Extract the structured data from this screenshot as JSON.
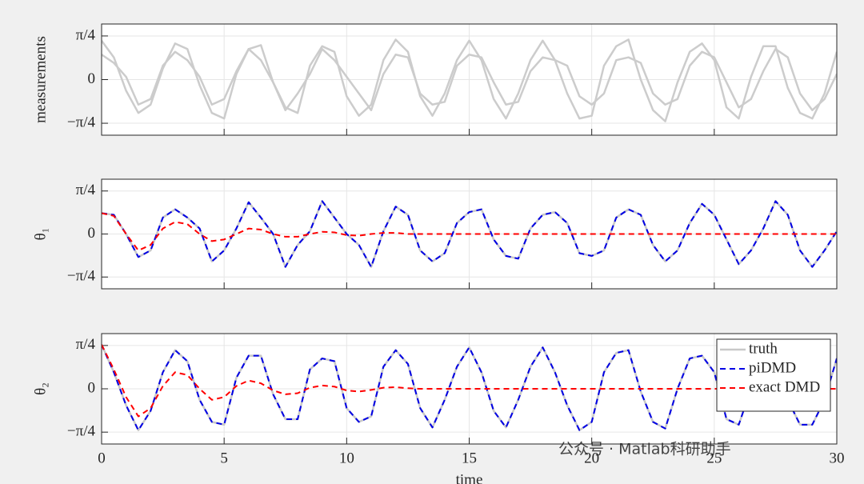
{
  "chart_data": [
    {
      "type": "line",
      "ylabel": "measurements",
      "x": [
        0,
        0.5,
        1,
        1.5,
        2,
        2.5,
        3,
        3.5,
        4,
        4.5,
        5,
        5.5,
        6,
        6.5,
        7,
        7.5,
        8,
        8.5,
        9,
        9.5,
        10,
        10.5,
        11,
        11.5,
        12,
        12.5,
        13,
        13.5,
        14,
        14.5,
        15,
        15.5,
        16,
        16.5,
        17,
        17.5,
        18,
        18.5,
        19,
        19.5,
        20,
        20.5,
        21,
        21.5,
        22,
        22.5,
        23,
        23.5,
        24,
        24.5,
        25,
        25.5,
        26,
        26.5,
        27,
        27.5,
        28,
        28.5,
        29,
        29.5,
        30
      ],
      "series": [
        {
          "color": "#cccccc",
          "style": "solid",
          "values": [
            0.7,
            0.4,
            -0.2,
            -0.6,
            -0.45,
            0.2,
            0.65,
            0.55,
            -0.1,
            -0.6,
            -0.7,
            0.1,
            0.55,
            0.62,
            -0.05,
            -0.5,
            -0.6,
            0.25,
            0.6,
            0.5,
            -0.3,
            -0.65,
            -0.45,
            0.35,
            0.72,
            0.5,
            -0.3,
            -0.65,
            -0.25,
            0.35,
            0.7,
            0.35,
            -0.35,
            -0.7,
            -0.25,
            0.35,
            0.7,
            0.35,
            -0.25,
            -0.7,
            -0.65,
            0.25,
            0.6,
            0.72,
            0.0,
            -0.55,
            -0.75,
            -0.05,
            0.5,
            0.65,
            0.35,
            -0.5,
            -0.7,
            0.05,
            0.6,
            0.6,
            -0.15,
            -0.6,
            -0.7,
            -0.25,
            0.5
          ]
        },
        {
          "color": "#cccccc",
          "style": "solid",
          "values": [
            0.45,
            0.3,
            0.05,
            -0.45,
            -0.35,
            0.25,
            0.5,
            0.35,
            0.05,
            -0.45,
            -0.35,
            0.15,
            0.55,
            0.35,
            -0.05,
            -0.55,
            -0.25,
            0.1,
            0.55,
            0.35,
            0.05,
            -0.25,
            -0.55,
            0.1,
            0.45,
            0.4,
            -0.25,
            -0.45,
            -0.4,
            0.25,
            0.45,
            0.4,
            -0.05,
            -0.45,
            -0.4,
            0.15,
            0.4,
            0.35,
            0.25,
            -0.3,
            -0.45,
            -0.25,
            0.35,
            0.4,
            0.3,
            -0.25,
            -0.45,
            -0.35,
            0.25,
            0.5,
            0.4,
            -0.05,
            -0.5,
            -0.35,
            0.15,
            0.55,
            0.4,
            -0.25,
            -0.55,
            -0.35,
            0.1
          ]
        }
      ],
      "xlim": [
        0,
        30
      ],
      "xticks": [
        0,
        5,
        10,
        15,
        20,
        25,
        30
      ],
      "show_xtick_labels": false,
      "ylim": [
        -1,
        1
      ],
      "yticks": [
        {
          "value": -0.785,
          "label": "−π/4"
        },
        0,
        {
          "value": 0.785,
          "label": "π/4"
        }
      ],
      "grid": true
    },
    {
      "type": "line",
      "ylabel": "θ₁",
      "x": [
        0,
        0.5,
        1,
        1.5,
        2,
        2.5,
        3,
        3.5,
        4,
        4.5,
        5,
        5.5,
        6,
        6.5,
        7,
        7.5,
        8,
        8.5,
        9,
        9.5,
        10,
        10.5,
        11,
        11.5,
        12,
        12.5,
        13,
        13.5,
        14,
        14.5,
        15,
        15.5,
        16,
        16.5,
        17,
        17.5,
        18,
        18.5,
        19,
        19.5,
        20,
        20.5,
        21,
        21.5,
        22,
        22.5,
        23,
        23.5,
        24,
        24.5,
        25,
        25.5,
        26,
        26.5,
        27,
        27.5,
        28,
        28.5,
        29,
        29.5,
        30
      ],
      "series": [
        {
          "color": "#c8c8c8",
          "style": "solid",
          "values": [
            0.38,
            0.35,
            0.0,
            -0.42,
            -0.3,
            0.3,
            0.45,
            0.3,
            0.1,
            -0.5,
            -0.3,
            0.1,
            0.58,
            0.3,
            0.0,
            -0.6,
            -0.2,
            0.05,
            0.6,
            0.3,
            0.0,
            -0.2,
            -0.6,
            0.05,
            0.5,
            0.35,
            -0.3,
            -0.5,
            -0.35,
            0.2,
            0.4,
            0.45,
            -0.1,
            -0.4,
            -0.45,
            0.1,
            0.35,
            0.4,
            0.2,
            -0.35,
            -0.4,
            -0.3,
            0.3,
            0.45,
            0.35,
            -0.2,
            -0.5,
            -0.3,
            0.2,
            0.55,
            0.35,
            -0.1,
            -0.55,
            -0.3,
            0.1,
            0.6,
            0.35,
            -0.3,
            -0.6,
            -0.3,
            0.05
          ]
        },
        {
          "color": "#0000e6",
          "style": "dashed",
          "values": [
            0.38,
            0.35,
            0.0,
            -0.42,
            -0.3,
            0.3,
            0.45,
            0.3,
            0.1,
            -0.5,
            -0.3,
            0.1,
            0.58,
            0.3,
            0.0,
            -0.6,
            -0.2,
            0.05,
            0.6,
            0.3,
            0.0,
            -0.2,
            -0.6,
            0.05,
            0.5,
            0.35,
            -0.3,
            -0.5,
            -0.35,
            0.2,
            0.4,
            0.45,
            -0.1,
            -0.4,
            -0.45,
            0.1,
            0.35,
            0.4,
            0.2,
            -0.35,
            -0.4,
            -0.3,
            0.3,
            0.45,
            0.35,
            -0.2,
            -0.5,
            -0.3,
            0.2,
            0.55,
            0.35,
            -0.1,
            -0.55,
            -0.3,
            0.1,
            0.6,
            0.35,
            -0.3,
            -0.6,
            -0.3,
            0.05
          ]
        },
        {
          "color": "#ff0000",
          "style": "dashed",
          "values": [
            0.38,
            0.33,
            0.0,
            -0.3,
            -0.2,
            0.1,
            0.22,
            0.18,
            0.0,
            -0.13,
            -0.1,
            0.0,
            0.1,
            0.08,
            0.0,
            -0.05,
            -0.05,
            0.0,
            0.04,
            0.03,
            -0.02,
            -0.03,
            0,
            0.02,
            0.02,
            0.0,
            0,
            0,
            0,
            0,
            0,
            0,
            0,
            0,
            0,
            0,
            0,
            0,
            0,
            0,
            0,
            0,
            0,
            0,
            0,
            0,
            0,
            0,
            0,
            0,
            0,
            0,
            0,
            0,
            0,
            0,
            0,
            0,
            0,
            0,
            0
          ]
        }
      ],
      "xlim": [
        0,
        30
      ],
      "xticks": [
        0,
        5,
        10,
        15,
        20,
        25,
        30
      ],
      "show_xtick_labels": false,
      "ylim": [
        -1,
        1
      ],
      "yticks": [
        {
          "value": -0.785,
          "label": "−π/4"
        },
        0,
        {
          "value": 0.785,
          "label": "π/4"
        }
      ],
      "grid": true
    },
    {
      "type": "line",
      "ylabel": "θ₂",
      "xlabel": "time",
      "x": [
        0,
        0.5,
        1,
        1.5,
        2,
        2.5,
        3,
        3.5,
        4,
        4.5,
        5,
        5.5,
        6,
        6.5,
        7,
        7.5,
        8,
        8.5,
        9,
        9.5,
        10,
        10.5,
        11,
        11.5,
        12,
        12.5,
        13,
        13.5,
        14,
        14.5,
        15,
        15.5,
        16,
        16.5,
        17,
        17.5,
        18,
        18.5,
        19,
        19.5,
        20,
        20.5,
        21,
        21.5,
        22,
        22.5,
        23,
        23.5,
        24,
        24.5,
        25,
        25.5,
        26,
        26.5,
        27,
        27.5,
        28,
        28.5,
        29,
        29.5,
        30
      ],
      "series": [
        {
          "name": "truth",
          "color": "#c8c8c8",
          "style": "solid",
          "values": [
            0.8,
            0.3,
            -0.3,
            -0.75,
            -0.4,
            0.3,
            0.7,
            0.5,
            -0.2,
            -0.6,
            -0.65,
            0.2,
            0.6,
            0.6,
            -0.1,
            -0.55,
            -0.55,
            0.35,
            0.55,
            0.5,
            -0.35,
            -0.6,
            -0.5,
            0.4,
            0.7,
            0.45,
            -0.35,
            -0.7,
            -0.2,
            0.4,
            0.75,
            0.3,
            -0.4,
            -0.7,
            -0.2,
            0.4,
            0.75,
            0.3,
            -0.3,
            -0.75,
            -0.6,
            0.3,
            0.65,
            0.7,
            -0.05,
            -0.6,
            -0.72,
            0.0,
            0.55,
            0.6,
            0.3,
            -0.55,
            -0.65,
            0.0,
            0.65,
            0.55,
            -0.2,
            -0.65,
            -0.65,
            -0.2,
            0.55
          ]
        },
        {
          "name": "piDMD",
          "color": "#0000e6",
          "style": "dashed",
          "values": [
            0.8,
            0.3,
            -0.3,
            -0.75,
            -0.4,
            0.3,
            0.7,
            0.5,
            -0.2,
            -0.6,
            -0.65,
            0.2,
            0.6,
            0.6,
            -0.1,
            -0.55,
            -0.55,
            0.35,
            0.55,
            0.5,
            -0.35,
            -0.6,
            -0.5,
            0.4,
            0.7,
            0.45,
            -0.35,
            -0.7,
            -0.2,
            0.4,
            0.75,
            0.3,
            -0.4,
            -0.7,
            -0.2,
            0.4,
            0.75,
            0.3,
            -0.3,
            -0.75,
            -0.6,
            0.3,
            0.65,
            0.7,
            -0.05,
            -0.6,
            -0.72,
            0.0,
            0.55,
            0.6,
            0.3,
            -0.55,
            -0.65,
            0.0,
            0.65,
            0.55,
            -0.2,
            -0.65,
            -0.65,
            -0.2,
            0.55
          ]
        },
        {
          "name": "exact DMD",
          "color": "#ff0000",
          "style": "dashed",
          "values": [
            0.8,
            0.35,
            -0.15,
            -0.5,
            -0.35,
            0.05,
            0.3,
            0.25,
            0.0,
            -0.2,
            -0.15,
            0.05,
            0.15,
            0.1,
            -0.03,
            -0.1,
            -0.08,
            0.02,
            0.06,
            0.04,
            -0.03,
            -0.05,
            -0.02,
            0.02,
            0.03,
            0.01,
            0,
            0,
            0,
            0,
            0,
            0,
            0,
            0,
            0,
            0,
            0,
            0,
            0,
            0,
            0,
            0,
            0,
            0,
            0,
            0,
            0,
            0,
            0,
            0,
            0,
            0,
            0,
            0,
            0,
            0,
            0,
            0,
            0,
            0,
            0
          ]
        }
      ],
      "xlim": [
        0,
        30
      ],
      "xticks": [
        0,
        5,
        10,
        15,
        20,
        25,
        30
      ],
      "show_xtick_labels": true,
      "ylim": [
        -1,
        1
      ],
      "yticks": [
        {
          "value": -0.785,
          "label": "−π/4"
        },
        0,
        {
          "value": 0.785,
          "label": "π/4"
        }
      ],
      "grid": true,
      "legend": "northeast"
    }
  ],
  "watermark": "公众号 · Matlab科研助手"
}
